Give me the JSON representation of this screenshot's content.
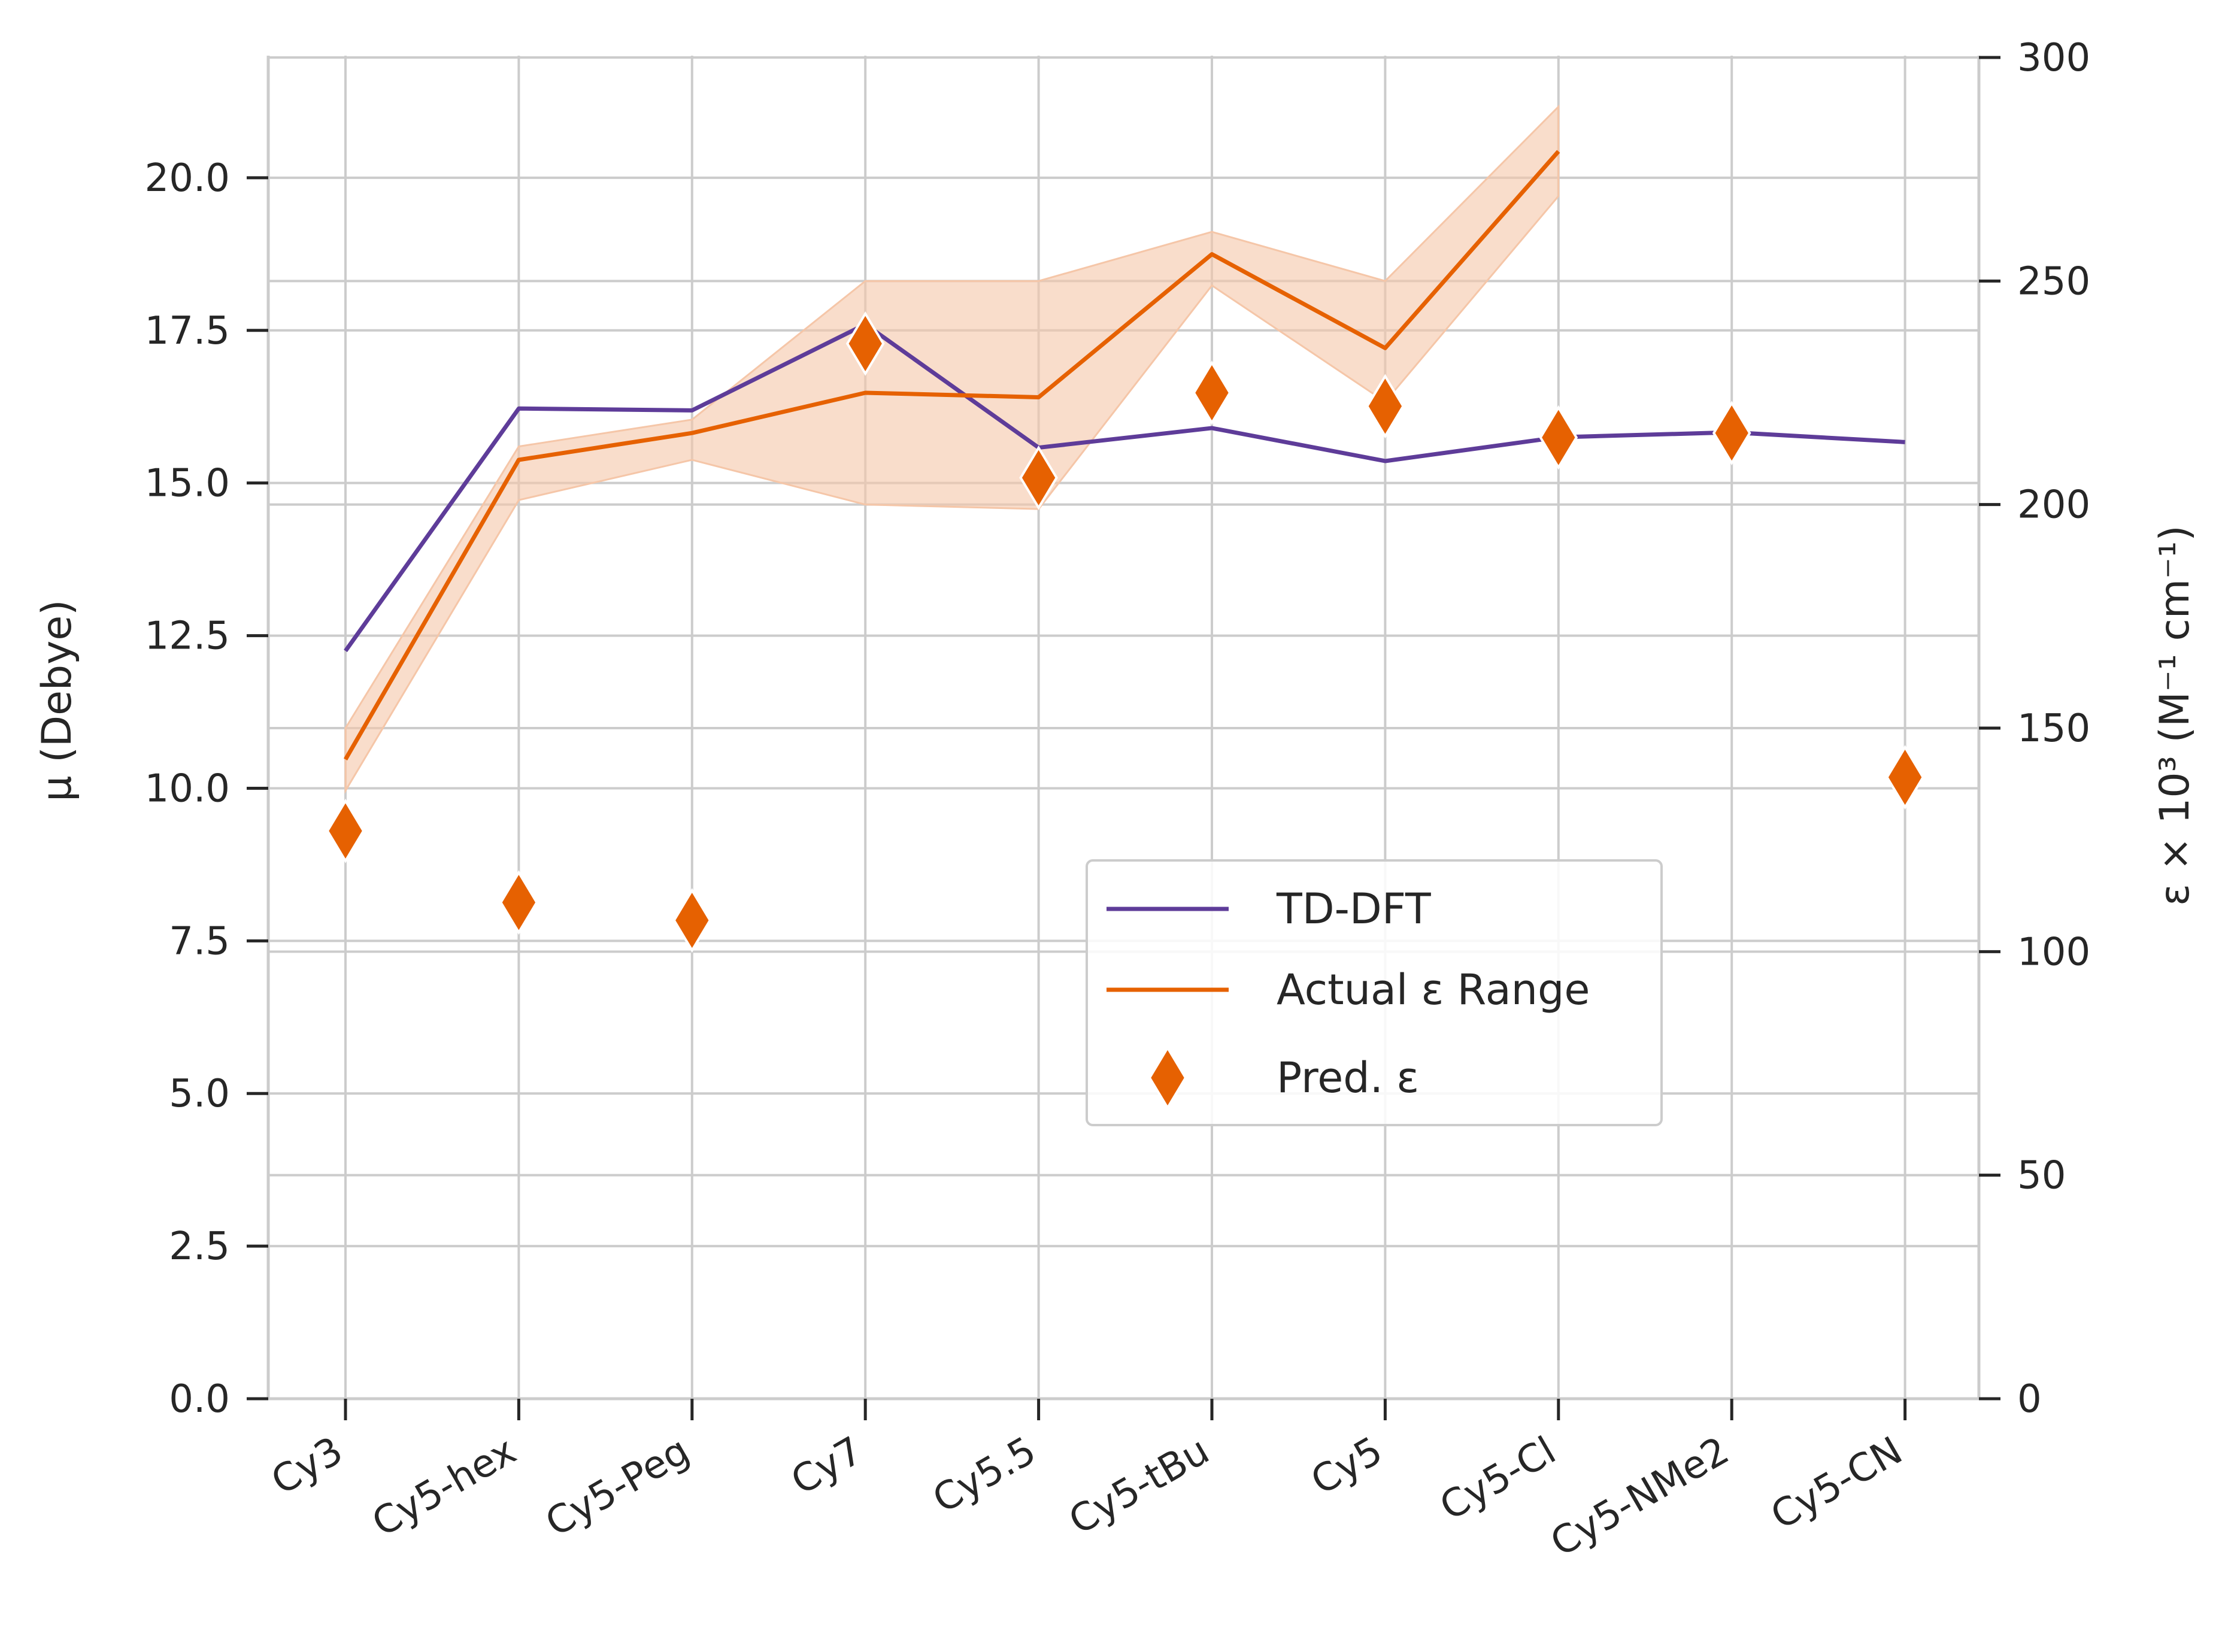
{
  "chart_data": {
    "type": "line",
    "categories": [
      "Cy3",
      "Cy5-hex",
      "Cy5-Peg",
      "Cy7",
      "Cy5.5",
      "Cy5-tBu",
      "Cy5",
      "Cy5-Cl",
      "Cy5-NMe2",
      "Cy5-CN"
    ],
    "ylabel": "μ (Debye)",
    "y2label": "ε × 10³ (M⁻¹ cm⁻¹)",
    "ylim": [
      0,
      22
    ],
    "y2lim": [
      0,
      300
    ],
    "yticks": [
      "0.0",
      "2.5",
      "5.0",
      "7.5",
      "10.0",
      "12.5",
      "15.0",
      "17.5",
      "20.0"
    ],
    "y2ticks": [
      "0",
      "50",
      "100",
      "150",
      "200",
      "250",
      "300"
    ],
    "grid": true,
    "legend_position": "center-right",
    "series": [
      {
        "name": "TD-DFT",
        "axis": "left",
        "kind": "line",
        "color": "#5e3c99",
        "values": [
          12.25,
          16.22,
          16.19,
          17.6,
          15.58,
          15.9,
          15.36,
          15.75,
          15.83,
          15.67
        ]
      },
      {
        "name": "Actual ε Range",
        "axis": "right",
        "kind": "line-band",
        "color": "#e66101",
        "band_color": "#f5c6a8",
        "values": [
          143,
          210,
          216,
          225,
          224,
          256,
          235,
          279,
          null,
          null
        ],
        "lower": [
          136,
          201,
          210,
          200,
          199,
          249,
          223,
          269,
          null,
          null
        ],
        "upper": [
          150,
          213,
          219,
          250,
          250,
          261,
          250,
          289,
          null,
          null
        ]
      },
      {
        "name": "Pred. ε",
        "axis": "right",
        "kind": "scatter",
        "marker": "diamond",
        "color": "#e66101",
        "values": [
          127,
          111,
          107,
          236,
          206,
          225,
          222,
          215,
          216,
          139
        ]
      }
    ]
  }
}
